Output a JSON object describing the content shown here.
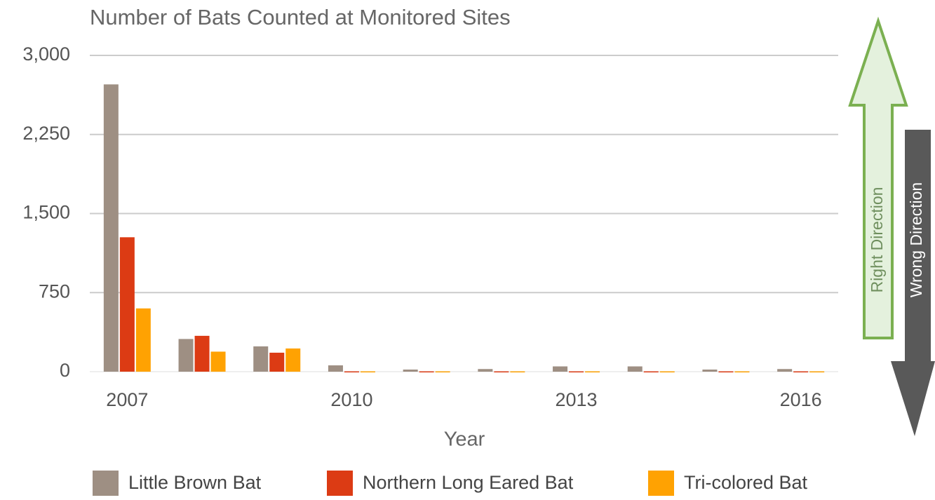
{
  "chart_data": {
    "type": "bar",
    "title": "Number of Bats Counted at Monitored Sites",
    "x_label": "Year",
    "categories": [
      "2007",
      null,
      null,
      "2010",
      null,
      null,
      "2013",
      null,
      null,
      "2016"
    ],
    "series": [
      {
        "name": "Little Brown Bat",
        "color": "#9e8f83",
        "values": [
          2725,
          310,
          240,
          60,
          20,
          25,
          50,
          50,
          20,
          25
        ]
      },
      {
        "name": "Northern Long Eared Bat",
        "color": "#dc3b14",
        "values": [
          1275,
          340,
          180,
          3,
          3,
          3,
          3,
          3,
          3,
          3
        ]
      },
      {
        "name": "Tri-colored Bat",
        "color": "#ffa202",
        "values": [
          600,
          190,
          220,
          3,
          3,
          3,
          3,
          3,
          3,
          3
        ]
      }
    ],
    "ylim": [
      0,
      3000
    ],
    "yticks": [
      0,
      {
        "value": 750,
        "label": "750"
      },
      {
        "value": 1500,
        "label": "1,500"
      },
      {
        "value": 2250,
        "label": "2,250"
      },
      {
        "value": 3000,
        "label": "3,000"
      }
    ],
    "grid": true,
    "legend": "bottom",
    "annotations": [
      "Right Direction",
      "Wrong Direction"
    ]
  }
}
